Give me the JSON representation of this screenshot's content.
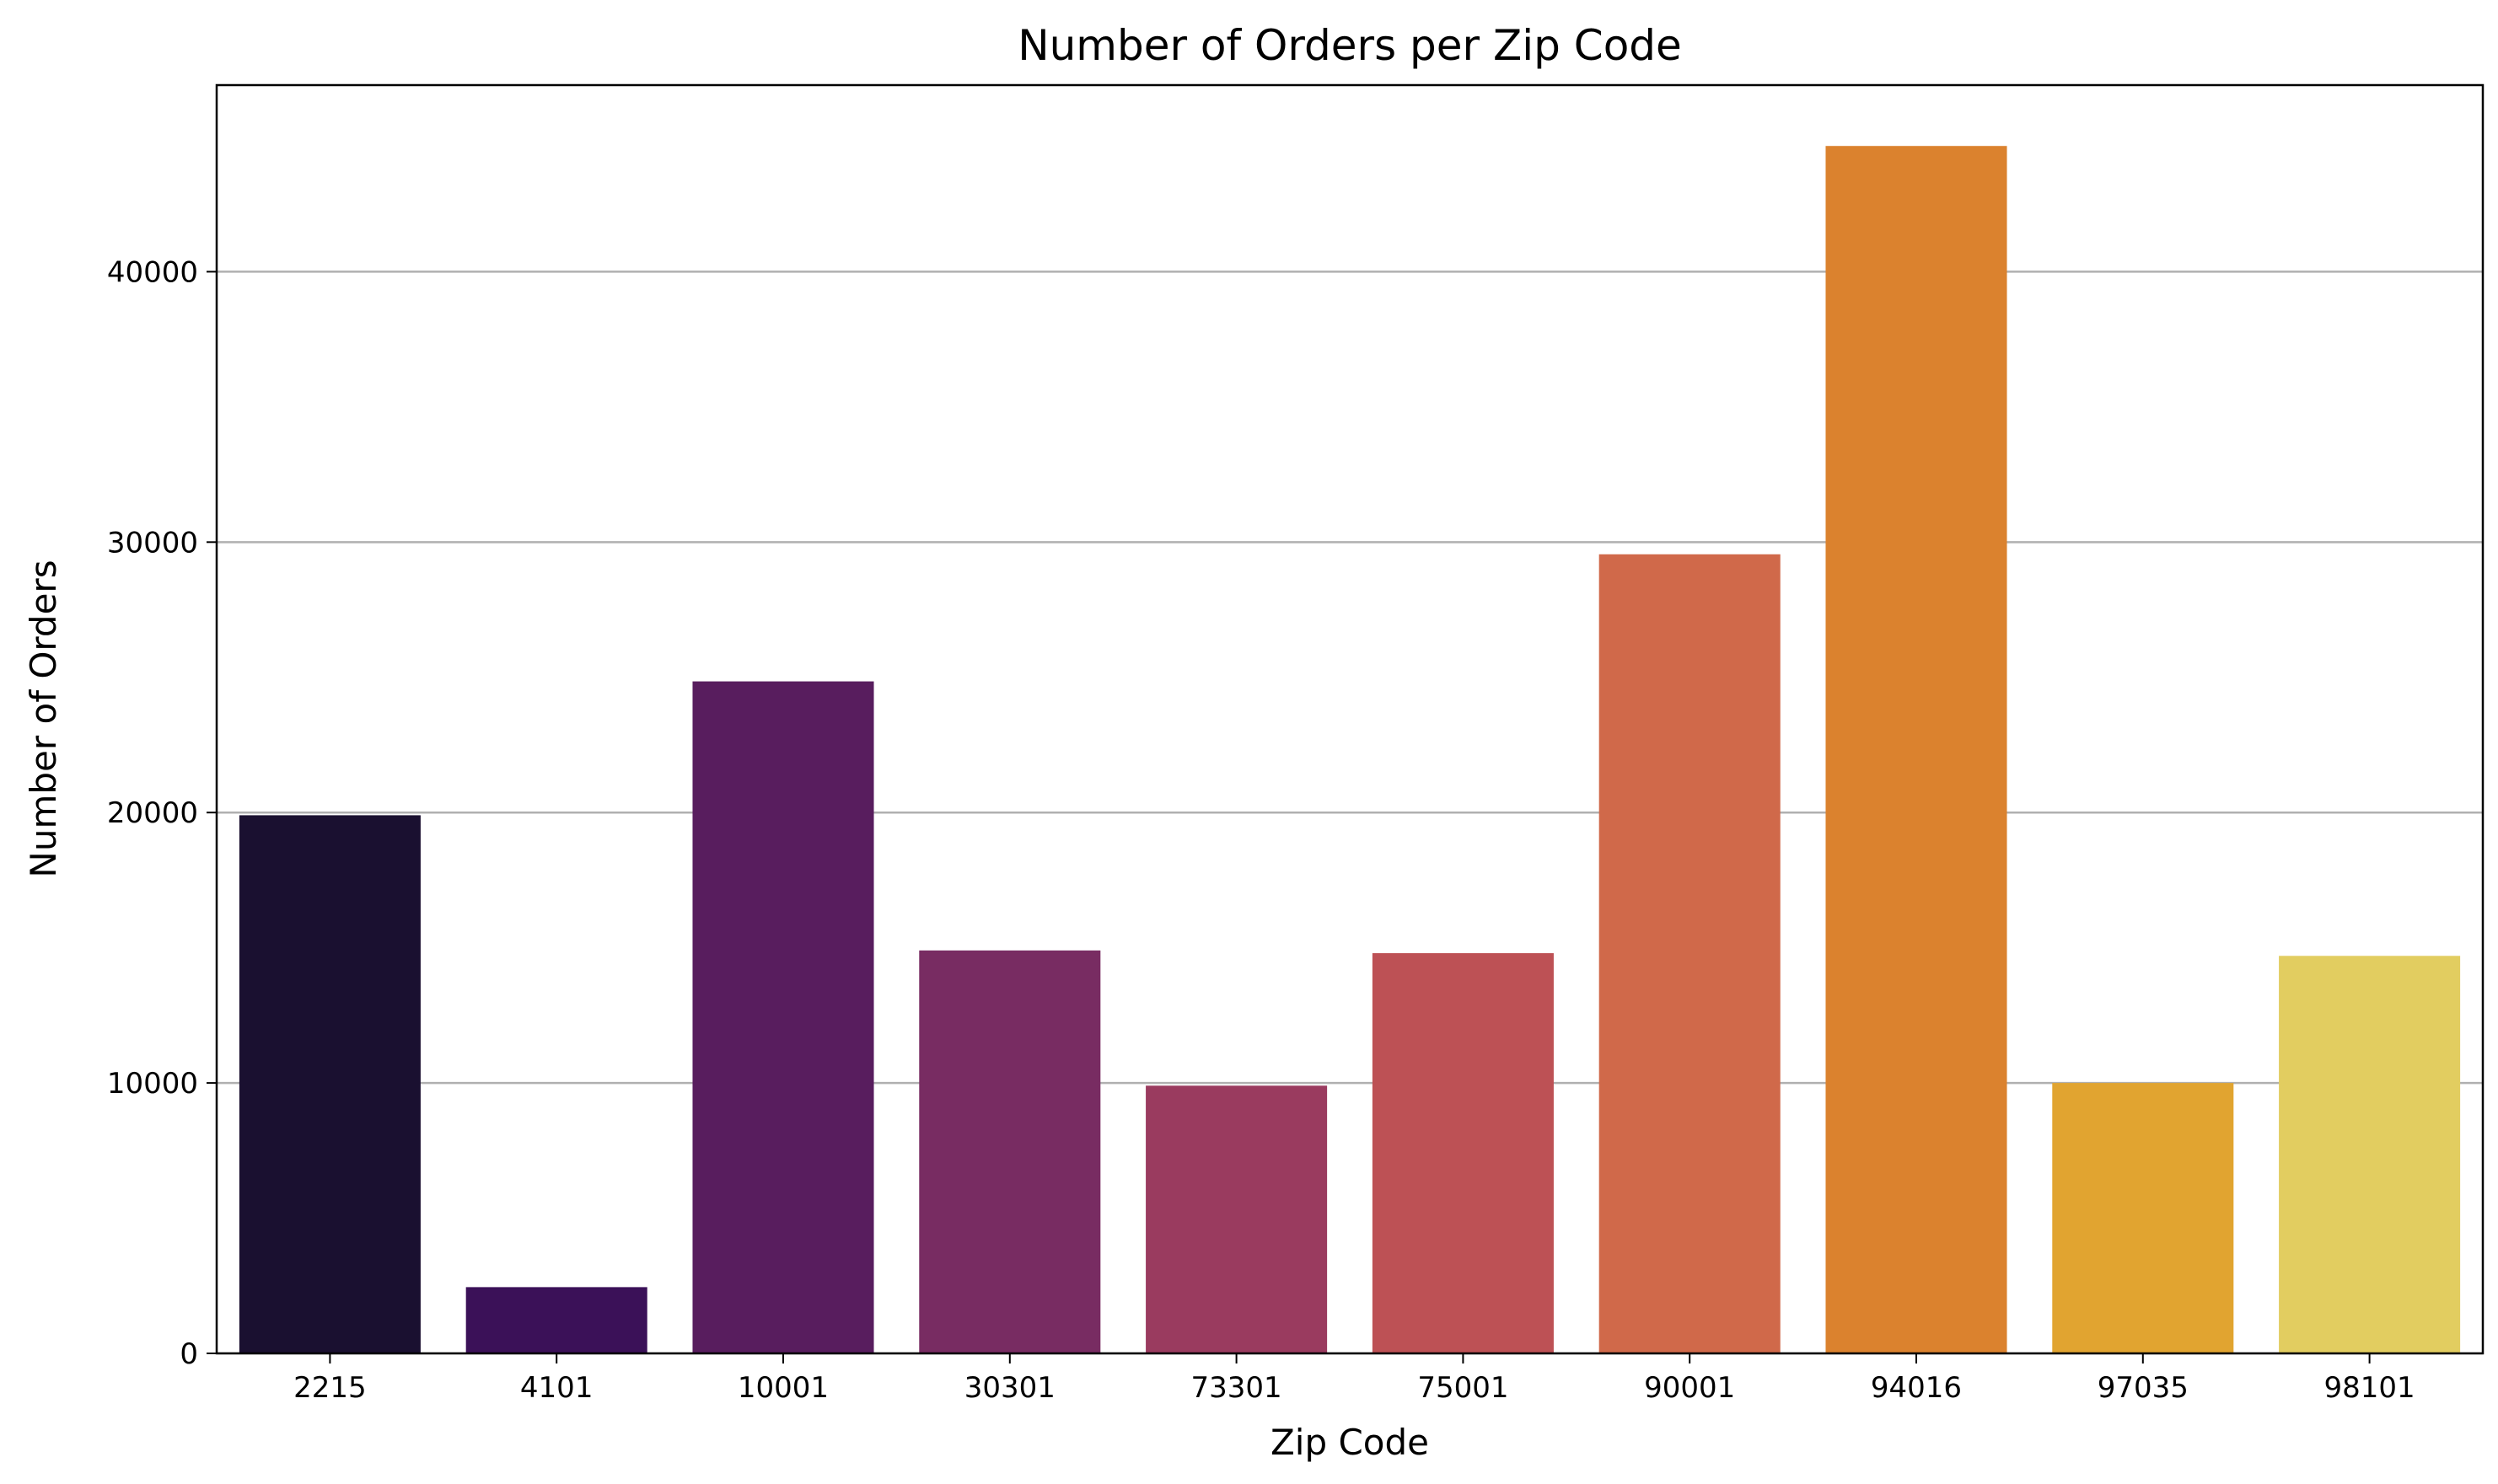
{
  "chart_data": {
    "type": "bar",
    "title": "Number of Orders per Zip Code",
    "xlabel": "Zip Code",
    "ylabel": "Number of Orders",
    "categories": [
      "2215",
      "4101",
      "10001",
      "30301",
      "73301",
      "75001",
      "90001",
      "94016",
      "97035",
      "98101"
    ],
    "values": [
      19900,
      2450,
      24850,
      14900,
      9900,
      14800,
      29550,
      44650,
      10000,
      14700
    ],
    "colors": [
      "#1a1030",
      "#3b1158",
      "#581d5e",
      "#782c62",
      "#9a3b5f",
      "#bd5155",
      "#d0694a",
      "#db822e",
      "#e1a430",
      "#e2cd60"
    ],
    "ylim": [
      0,
      46900
    ],
    "yticks": [
      0,
      10000,
      20000,
      30000,
      40000
    ],
    "ytick_labels": [
      "0",
      "10000",
      "20000",
      "30000",
      "40000"
    ],
    "grid": "y",
    "legend": "none"
  }
}
